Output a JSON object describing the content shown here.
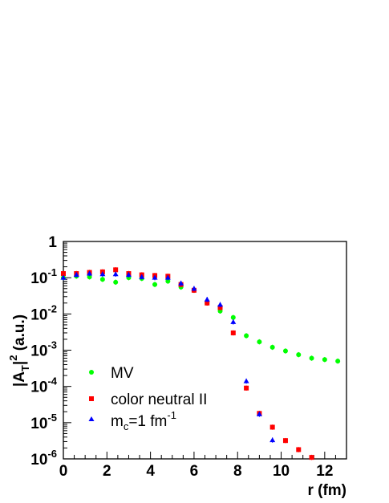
{
  "chart_data": {
    "type": "scatter",
    "xlabel": "r (fm)",
    "ylabel": {
      "base": "|A",
      "sub": "T",
      "tail": "|",
      "sup": "2",
      "unit": " (a.u.)"
    },
    "xlim": [
      0,
      13
    ],
    "ylim": [
      1e-06,
      1
    ],
    "y_scale": "log",
    "x_ticks": [
      "0",
      "2",
      "4",
      "6",
      "8",
      "10",
      "12"
    ],
    "y_ticks": [
      {
        "base": "1",
        "exp": ""
      },
      {
        "base": "10",
        "exp": "-1"
      },
      {
        "base": "10",
        "exp": "-2"
      },
      {
        "base": "10",
        "exp": "-3"
      },
      {
        "base": "10",
        "exp": "-4"
      },
      {
        "base": "10",
        "exp": "-5"
      },
      {
        "base": "10",
        "exp": "-6"
      }
    ],
    "legend_position": "bottom-left",
    "series": [
      {
        "name": "MV",
        "marker": "circle",
        "color": "#00ff00",
        "x": [
          0.0,
          0.6,
          1.2,
          1.8,
          2.4,
          3.0,
          3.6,
          4.2,
          4.8,
          5.4,
          6.0,
          6.6,
          7.2,
          7.8,
          8.4,
          9.0,
          9.6,
          10.2,
          10.8,
          11.4,
          12.0,
          12.6
        ],
        "y": [
          0.1,
          0.11,
          0.105,
          0.09,
          0.075,
          0.1,
          0.095,
          0.065,
          0.08,
          0.055,
          0.045,
          0.02,
          0.012,
          0.008,
          0.0025,
          0.0017,
          0.0012,
          0.00095,
          0.00075,
          0.0006,
          0.00055,
          0.0005
        ]
      },
      {
        "name": "color neutral II",
        "marker": "square",
        "color": "#ff0000",
        "x": [
          0.0,
          0.6,
          1.2,
          1.8,
          2.4,
          3.0,
          3.6,
          4.2,
          4.8,
          5.4,
          6.0,
          6.6,
          7.2,
          7.8,
          8.4,
          9.0,
          9.6,
          10.2,
          10.8,
          11.4
        ],
        "y": [
          0.13,
          0.13,
          0.14,
          0.145,
          0.165,
          0.13,
          0.12,
          0.115,
          0.11,
          0.065,
          0.045,
          0.02,
          0.015,
          0.003,
          9e-05,
          1.8e-05,
          7.5e-06,
          3.2e-06,
          1.8e-06,
          1.1e-06
        ]
      },
      {
        "name": "m",
        "name_sub": "c",
        "name_mid": "=1 fm",
        "name_sup": "-1",
        "marker": "triangle",
        "color": "#0000ff",
        "x": [
          0.0,
          0.6,
          1.2,
          1.8,
          2.4,
          3.0,
          3.6,
          4.2,
          4.8,
          5.4,
          6.0,
          6.6,
          7.2,
          7.8,
          8.4,
          9.0,
          9.6
        ],
        "y": [
          0.1,
          0.12,
          0.13,
          0.125,
          0.125,
          0.12,
          0.105,
          0.1,
          0.1,
          0.07,
          0.05,
          0.025,
          0.018,
          0.006,
          0.00014,
          1.7e-05,
          3.3e-06
        ]
      }
    ]
  }
}
